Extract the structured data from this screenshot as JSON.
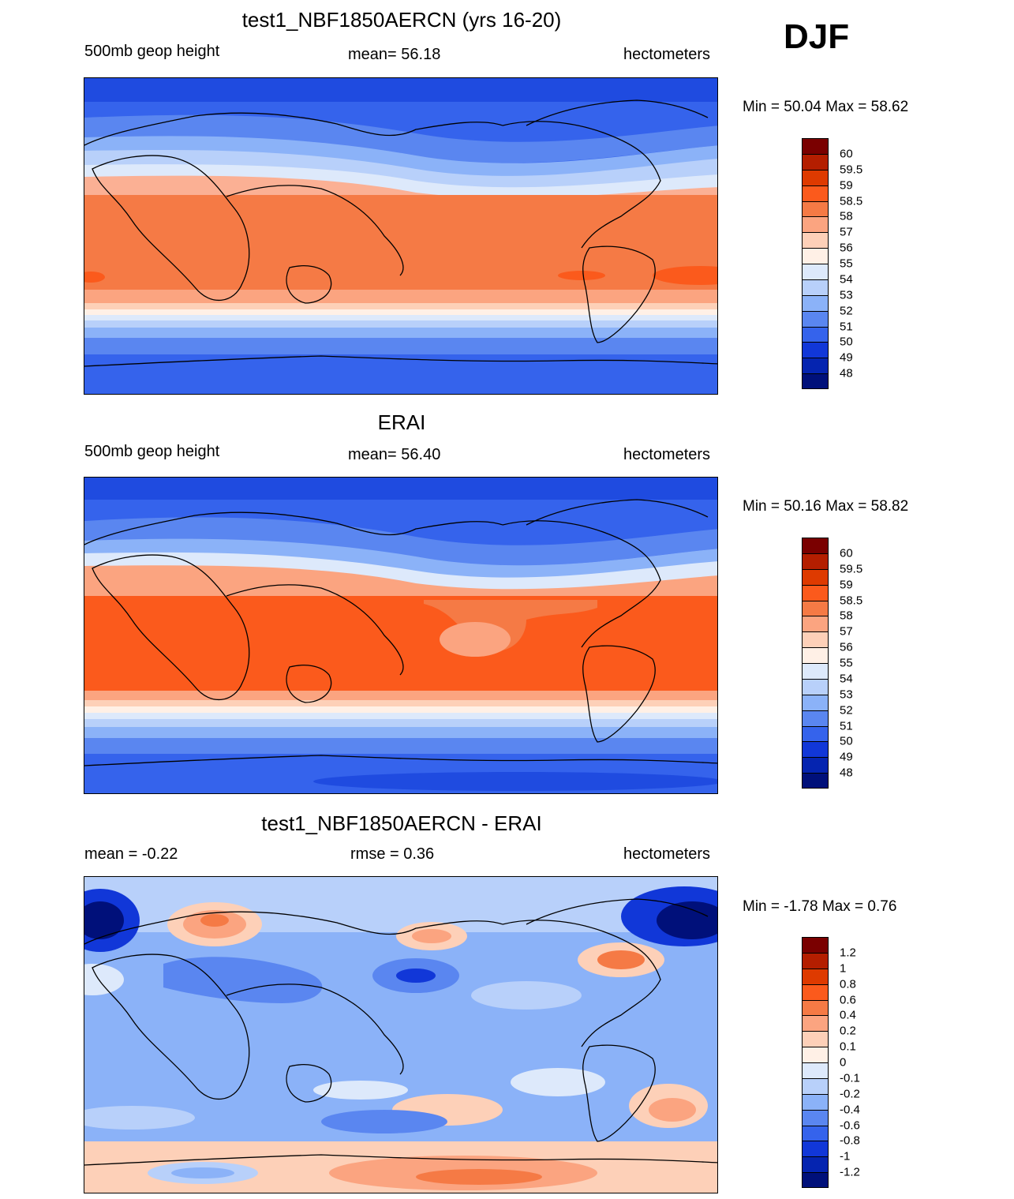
{
  "season": "DJF",
  "panels": [
    {
      "title": "test1_NBF1850AERCN (yrs 16-20)",
      "left_label": "500mb geop height",
      "center_label": "mean=  56.18",
      "right_label": "hectometers",
      "minmax": "Min =  50.04 Max =  58.62"
    },
    {
      "title": "ERAI",
      "left_label": "500mb geop height",
      "center_label": "mean=  56.40",
      "right_label": "hectometers",
      "minmax": "Min =  50.16 Max =  58.82"
    },
    {
      "title": "test1_NBF1850AERCN - ERAI",
      "left_label": "mean =  -0.22",
      "center_label": "rmse =   0.36",
      "right_label": "hectometers",
      "minmax": "Min =  -1.78 Max =   0.76"
    }
  ],
  "colorbars": [
    {
      "labels": [
        "60",
        "59.5",
        "59",
        "58.5",
        "58",
        "57",
        "56",
        "55",
        "54",
        "53",
        "52",
        "51",
        "50",
        "49",
        "48"
      ],
      "colors": [
        "#7a0000",
        "#b41e00",
        "#de3a00",
        "#fb5a1c",
        "#f57a45",
        "#fba480",
        "#fdd0b8",
        "#fff0e6",
        "#dde9fb",
        "#b8d0fa",
        "#8bb2f8",
        "#5a86f0",
        "#3563ec",
        "#1137d8",
        "#0524b0",
        "#00107a"
      ]
    },
    {
      "labels": [
        "60",
        "59.5",
        "59",
        "58.5",
        "58",
        "57",
        "56",
        "55",
        "54",
        "53",
        "52",
        "51",
        "50",
        "49",
        "48"
      ],
      "colors": [
        "#7a0000",
        "#b41e00",
        "#de3a00",
        "#fb5a1c",
        "#f57a45",
        "#fba480",
        "#fdd0b8",
        "#fff0e6",
        "#dde9fb",
        "#b8d0fa",
        "#8bb2f8",
        "#5a86f0",
        "#3563ec",
        "#1137d8",
        "#0524b0",
        "#00107a"
      ]
    },
    {
      "labels": [
        "1.2",
        "1",
        "0.8",
        "0.6",
        "0.4",
        "0.2",
        "0.1",
        "0",
        "-0.1",
        "-0.2",
        "-0.4",
        "-0.6",
        "-0.8",
        "-1",
        "-1.2"
      ],
      "colors": [
        "#7a0000",
        "#b41e00",
        "#de3a00",
        "#fb5a1c",
        "#f57a45",
        "#fba480",
        "#fdd0b8",
        "#fff0e6",
        "#dde9fb",
        "#b8d0fa",
        "#8bb2f8",
        "#5a86f0",
        "#3563ec",
        "#1137d8",
        "#0524b0",
        "#00107a"
      ]
    }
  ]
}
